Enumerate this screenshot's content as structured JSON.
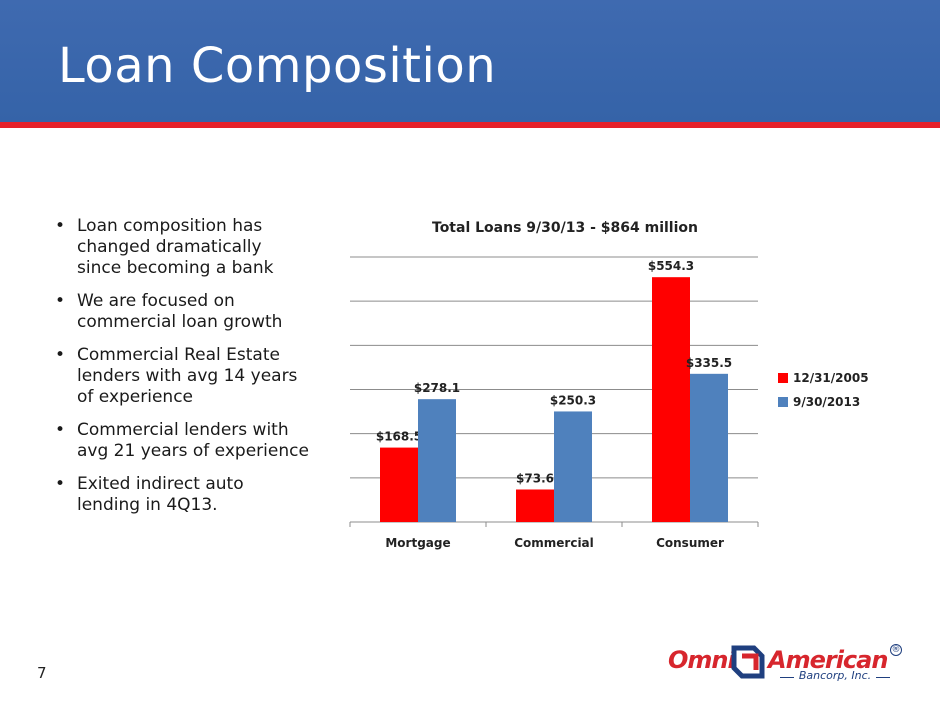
{
  "slide": {
    "title": "Loan Composition",
    "page_number": "7"
  },
  "bullets": [
    "Loan composition has changed dramatically since becoming a bank",
    "We are focused on commercial loan growth",
    "Commercial Real Estate lenders with avg 14 years of experience",
    "Commercial lenders with avg 21 years of experience",
    "Exited indirect auto lending in 4Q13."
  ],
  "bullet_glyph": "•",
  "logo": {
    "word_left": "Omni",
    "word_right": "American",
    "subtitle": "Bancorp, Inc.",
    "registered": "®"
  },
  "colors": {
    "header": "#3563a8",
    "stripe": "#e5202a",
    "series_2005": "#ff0000",
    "series_2013": "#4f81bd"
  },
  "chart_data": {
    "type": "bar",
    "title": "Total Loans 9/30/13 - $864 million",
    "categories": [
      "Mortgage",
      "Commercial",
      "Consumer"
    ],
    "series": [
      {
        "name": "12/31/2005",
        "values": [
          168.5,
          73.6,
          554.3
        ],
        "labels": [
          "$168.5",
          "$73.6",
          "$554.3"
        ],
        "color": "#ff0000"
      },
      {
        "name": "9/30/2013",
        "values": [
          278.1,
          250.3,
          335.5
        ],
        "labels": [
          "$278.1",
          "$250.3",
          "$335.5"
        ],
        "color": "#4f81bd"
      }
    ],
    "ylim": [
      0,
      600
    ],
    "grid": true,
    "legend": "right"
  }
}
